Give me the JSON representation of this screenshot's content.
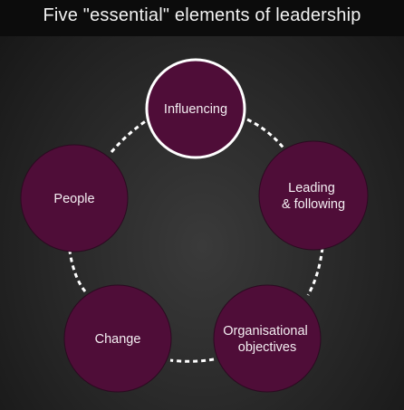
{
  "title": "Five \"essential\" elements of leadership",
  "colors": {
    "node_fill": "#4f0d38",
    "node_stroke": "#ffffff",
    "connector": "#ffffff"
  },
  "nodes": [
    {
      "id": "influencing",
      "lines": [
        "Influencing"
      ],
      "highlighted": true
    },
    {
      "id": "leading-following",
      "lines": [
        "Leading",
        "& following"
      ],
      "highlighted": false
    },
    {
      "id": "organisational-objectives",
      "lines": [
        "Organisational",
        "objectives"
      ],
      "highlighted": false
    },
    {
      "id": "change",
      "lines": [
        "Change"
      ],
      "highlighted": false
    },
    {
      "id": "people",
      "lines": [
        "People"
      ],
      "highlighted": false
    }
  ]
}
